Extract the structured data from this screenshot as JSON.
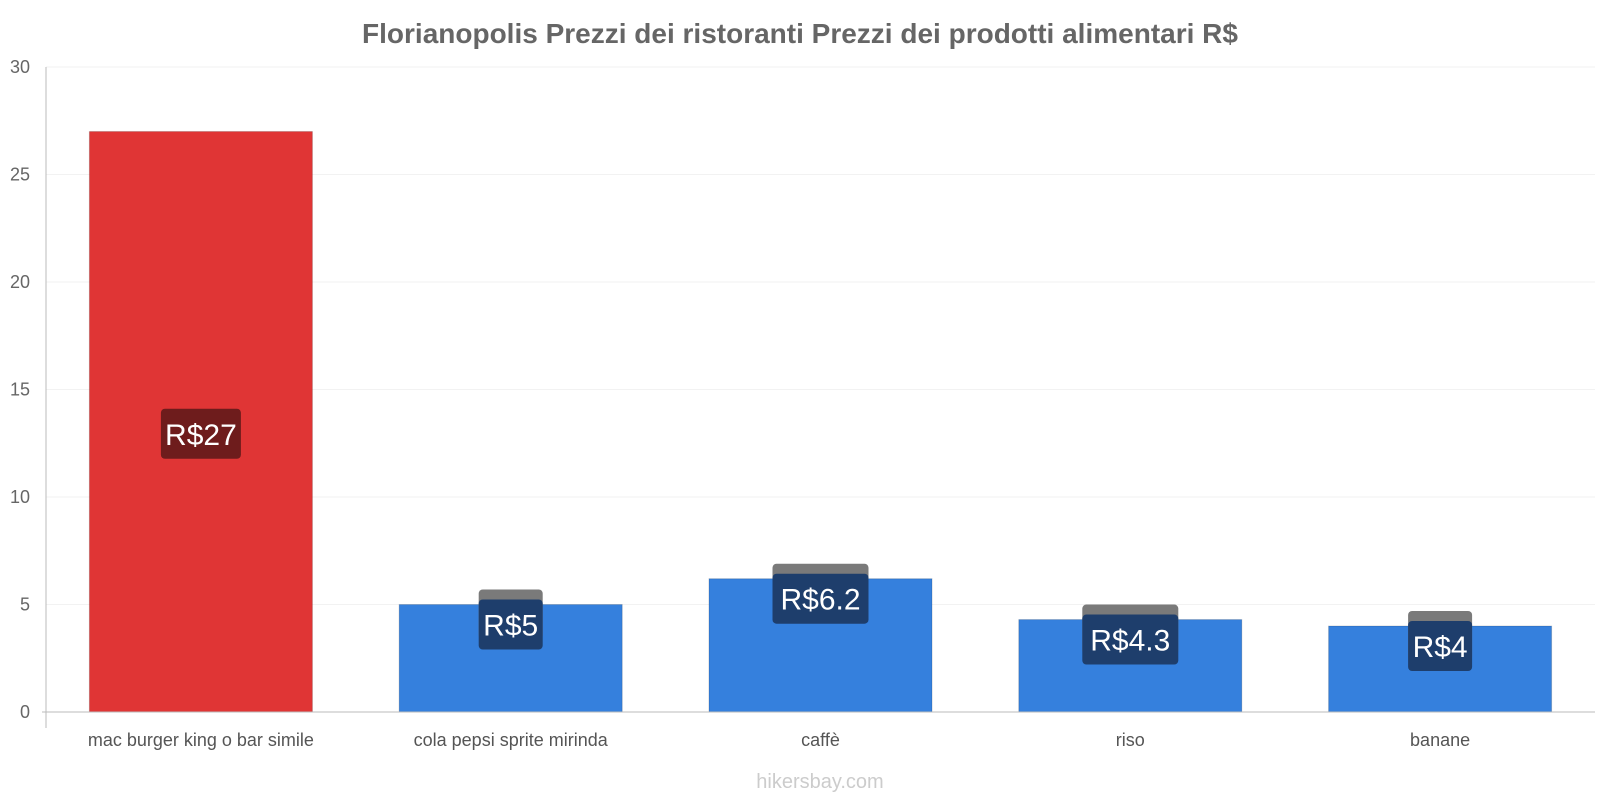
{
  "chart_data": {
    "type": "bar",
    "title": "Florianopolis Prezzi dei ristoranti Prezzi dei prodotti alimentari R$",
    "categories": [
      "mac burger king o bar simile",
      "cola pepsi sprite mirinda",
      "caffè",
      "riso",
      "banane"
    ],
    "values": [
      27,
      5,
      6.2,
      4.3,
      4
    ],
    "value_labels": [
      "R$27",
      "R$5",
      "R$6.2",
      "R$4.3",
      "R$4"
    ],
    "bar_colors": [
      "#e03535",
      "#3580dd",
      "#3580dd",
      "#3580dd",
      "#3580dd"
    ],
    "label_colors": [
      "#6e1c1c",
      "#1e3e6c",
      "#1e3e6c",
      "#1e3e6c",
      "#1e3e6c"
    ],
    "ylim": [
      0,
      30
    ],
    "yticks": [
      0,
      5,
      10,
      15,
      20,
      25,
      30
    ],
    "xlabel": "",
    "ylabel": "",
    "grid": true
  },
  "footer": "hikersbay.com"
}
